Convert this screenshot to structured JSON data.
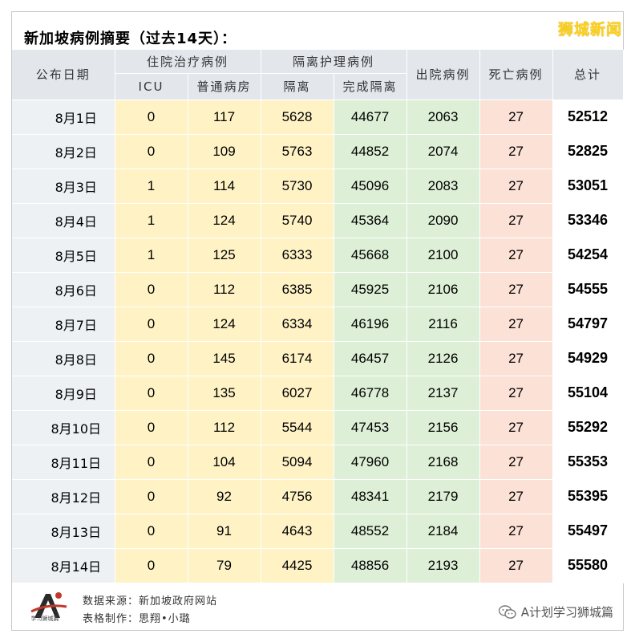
{
  "title": "新加坡病例摘要（过去14天）：",
  "brand": "狮城新闻",
  "headers": {
    "date": "公布日期",
    "hospital": "住院治疗病例",
    "icu": "ICU",
    "ward": "普通病房",
    "isolation_group": "隔离护理病例",
    "isolation": "隔离",
    "completed": "完成隔离",
    "discharged": "出院病例",
    "deaths": "死亡病例",
    "total": "总计"
  },
  "rows": [
    {
      "date": "8月1日",
      "icu": "0",
      "ward": "117",
      "isolation": "5628",
      "completed": "44677",
      "discharged": "2063",
      "deaths": "27",
      "total": "52512"
    },
    {
      "date": "8月2日",
      "icu": "0",
      "ward": "109",
      "isolation": "5763",
      "completed": "44852",
      "discharged": "2074",
      "deaths": "27",
      "total": "52825"
    },
    {
      "date": "8月3日",
      "icu": "1",
      "ward": "114",
      "isolation": "5730",
      "completed": "45096",
      "discharged": "2083",
      "deaths": "27",
      "total": "53051"
    },
    {
      "date": "8月4日",
      "icu": "1",
      "ward": "124",
      "isolation": "5740",
      "completed": "45364",
      "discharged": "2090",
      "deaths": "27",
      "total": "53346"
    },
    {
      "date": "8月5日",
      "icu": "1",
      "ward": "125",
      "isolation": "6333",
      "completed": "45668",
      "discharged": "2100",
      "deaths": "27",
      "total": "54254"
    },
    {
      "date": "8月6日",
      "icu": "0",
      "ward": "112",
      "isolation": "6385",
      "completed": "45925",
      "discharged": "2106",
      "deaths": "27",
      "total": "54555"
    },
    {
      "date": "8月7日",
      "icu": "0",
      "ward": "124",
      "isolation": "6334",
      "completed": "46196",
      "discharged": "2116",
      "deaths": "27",
      "total": "54797"
    },
    {
      "date": "8月8日",
      "icu": "0",
      "ward": "145",
      "isolation": "6174",
      "completed": "46457",
      "discharged": "2126",
      "deaths": "27",
      "total": "54929"
    },
    {
      "date": "8月9日",
      "icu": "0",
      "ward": "135",
      "isolation": "6027",
      "completed": "46778",
      "discharged": "2137",
      "deaths": "27",
      "total": "55104"
    },
    {
      "date": "8月10日",
      "icu": "0",
      "ward": "112",
      "isolation": "5544",
      "completed": "47453",
      "discharged": "2156",
      "deaths": "27",
      "total": "55292"
    },
    {
      "date": "8月11日",
      "icu": "0",
      "ward": "104",
      "isolation": "5094",
      "completed": "47960",
      "discharged": "2168",
      "deaths": "27",
      "total": "55353"
    },
    {
      "date": "8月12日",
      "icu": "0",
      "ward": "92",
      "isolation": "4756",
      "completed": "48341",
      "discharged": "2179",
      "deaths": "27",
      "total": "55395"
    },
    {
      "date": "8月13日",
      "icu": "0",
      "ward": "91",
      "isolation": "4643",
      "completed": "48552",
      "discharged": "2184",
      "deaths": "27",
      "total": "55497"
    },
    {
      "date": "8月14日",
      "icu": "0",
      "ward": "79",
      "isolation": "4425",
      "completed": "48856",
      "discharged": "2193",
      "deaths": "27",
      "total": "55580"
    }
  ],
  "footer": {
    "source": "数据来源：新加坡政府网站",
    "made_by": "表格制作：思翔•小璐",
    "logo_text": "学习狮城篇",
    "wechat": "A计划学习狮城篇"
  },
  "colors": {
    "header_bg": "#e3e7ec",
    "hospital_bg": "#fff3c6",
    "completed_bg": "#ddefd6",
    "deaths_bg": "#fbe1d6",
    "brand": "#ffd21a"
  },
  "icons": {
    "logo": "letter-a-logo-icon",
    "wechat": "wechat-icon"
  }
}
